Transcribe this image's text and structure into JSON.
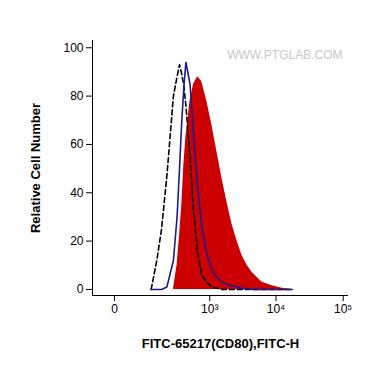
{
  "chart_data": {
    "type": "area",
    "x_label": "FITC-65217(CD80),FITC-H",
    "y_label": "Relative Cell Number",
    "annotations": [
      "WWW.PTGLAB.COM"
    ],
    "log": "x",
    "grid": false,
    "xlim": [
      -45,
      120000
    ],
    "xticks": [
      0,
      {
        "value": 1000,
        "label": "10³"
      },
      {
        "value": 10000,
        "label": "10⁴"
      },
      {
        "value": 100000,
        "label": "10⁵"
      }
    ],
    "ylim": [
      -2.5,
      103
    ],
    "yticks": [
      0,
      20,
      40,
      60,
      80,
      100
    ],
    "x": [
      100,
      130,
      160,
      200,
      260,
      300,
      330,
      360,
      390,
      420,
      490,
      560,
      650,
      750,
      900,
      1080,
      1290,
      1540,
      1840,
      2190,
      2610,
      3100,
      3700,
      4400,
      6200,
      8800,
      12400,
      17500
    ],
    "series": [
      {
        "type": "area",
        "color": "#cc0000",
        "values": [
          0,
          0,
          0,
          0,
          0,
          10,
          22,
          35,
          52,
          63,
          78,
          85,
          88,
          86,
          78,
          68,
          57,
          46,
          36,
          27,
          20,
          14,
          10,
          7,
          3,
          1.5,
          0.5,
          0
        ]
      },
      {
        "type": "line",
        "color": "#000000",
        "line_style": "dashed",
        "values": [
          0,
          12,
          25,
          47,
          80,
          88,
          93,
          89,
          84,
          76,
          55,
          32,
          15,
          6,
          3,
          1,
          0.5,
          0,
          0,
          0,
          0,
          0,
          0,
          0,
          0,
          0,
          0,
          0
        ]
      },
      {
        "type": "line",
        "color": "#1c1c8f",
        "line_style": "solid",
        "values": [
          0,
          0,
          0,
          1,
          12,
          30,
          50,
          70,
          84,
          94,
          85,
          63,
          42,
          26,
          15,
          8,
          5,
          3,
          2,
          1.5,
          1,
          0.5,
          0.3,
          0,
          0,
          0,
          0,
          0
        ]
      }
    ]
  }
}
